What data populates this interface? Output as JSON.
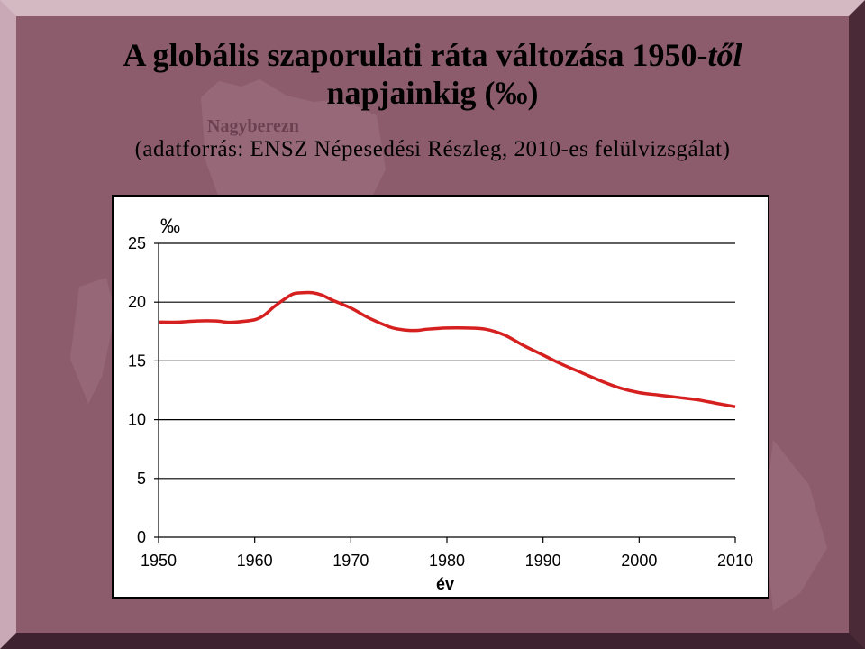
{
  "slide": {
    "title_main": "A globális szaporulati ráta változása 1950-",
    "title_italic": "től",
    "title_line2": "napjainkig (‰)",
    "subtitle": "(adatforrás: ENSZ Népesedési Részleg, 2010-es felülvizsgálat)",
    "background_map_label": "Nagyberezn",
    "colors": {
      "background": "#8c5c6d",
      "line": "#d62020"
    }
  },
  "chart_data": {
    "type": "line",
    "title": "",
    "xlabel": "év",
    "ylabel": "‰",
    "xlim": [
      1950,
      2010
    ],
    "ylim": [
      0,
      25
    ],
    "xticks": [
      1950,
      1960,
      1970,
      1980,
      1990,
      2000,
      2010
    ],
    "yticks": [
      0,
      5,
      10,
      15,
      20,
      25
    ],
    "grid": "horizontal",
    "legend": "none",
    "series": [
      {
        "color": "#d62020",
        "x": [
          1950,
          1952,
          1954,
          1956,
          1957,
          1958,
          1960,
          1961,
          1962,
          1963,
          1964,
          1965,
          1966,
          1967,
          1968,
          1970,
          1972,
          1974,
          1975,
          1976,
          1977,
          1978,
          1980,
          1982,
          1984,
          1986,
          1988,
          1990,
          1992,
          1994,
          1996,
          1998,
          2000,
          2002,
          2004,
          2006,
          2008,
          2010
        ],
        "y": [
          18.3,
          18.3,
          18.4,
          18.4,
          18.3,
          18.3,
          18.5,
          18.9,
          19.6,
          20.2,
          20.7,
          20.8,
          20.8,
          20.6,
          20.2,
          19.5,
          18.6,
          17.9,
          17.7,
          17.6,
          17.6,
          17.7,
          17.8,
          17.8,
          17.7,
          17.2,
          16.3,
          15.5,
          14.7,
          14.0,
          13.3,
          12.7,
          12.3,
          12.1,
          11.9,
          11.7,
          11.4,
          11.1
        ]
      }
    ]
  }
}
